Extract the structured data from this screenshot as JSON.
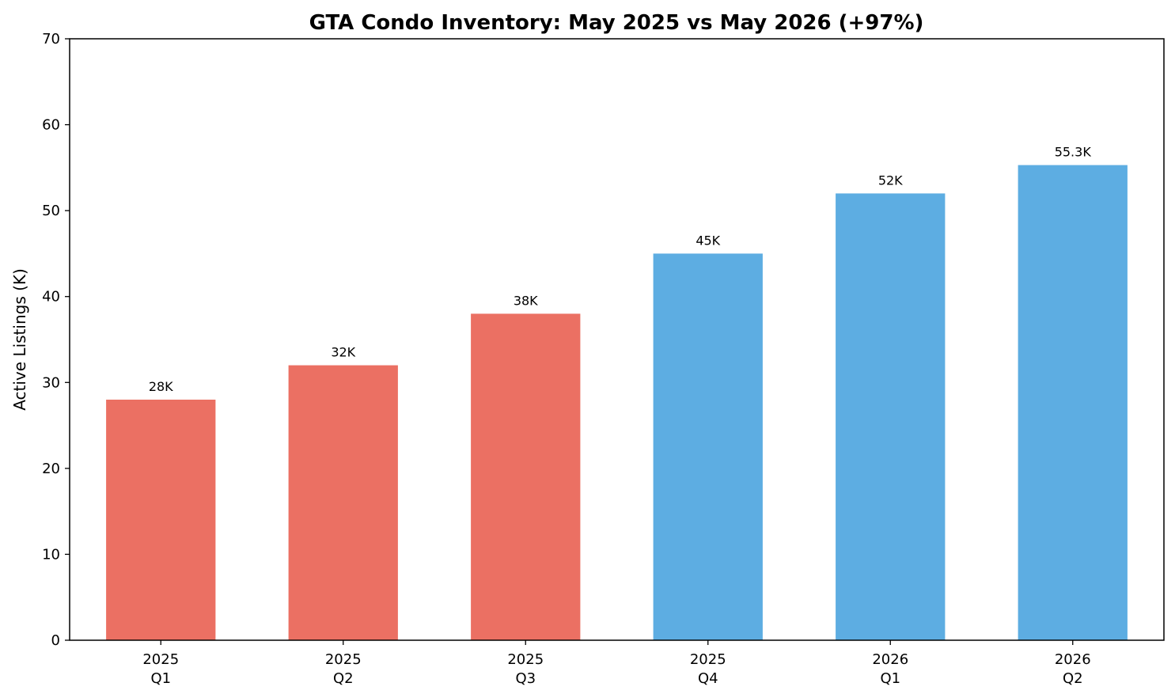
{
  "chart_data": {
    "type": "bar",
    "title": "GTA Condo Inventory: May 2025 vs May 2026 (+97%)",
    "ylabel": "Active Listings (K)",
    "xlabel": "",
    "ylim": [
      0,
      70
    ],
    "yticks": [
      0,
      10,
      20,
      30,
      40,
      50,
      60,
      70
    ],
    "grid": false,
    "categories": [
      [
        "2025",
        "Q1"
      ],
      [
        "2025",
        "Q2"
      ],
      [
        "2025",
        "Q3"
      ],
      [
        "2025",
        "Q4"
      ],
      [
        "2026",
        "Q1"
      ],
      [
        "2026",
        "Q2"
      ]
    ],
    "values": [
      28,
      32,
      38,
      45,
      52,
      55.3
    ],
    "data_labels": [
      "28K",
      "32K",
      "38K",
      "45K",
      "52K",
      "55.3K"
    ],
    "bar_colors": [
      "#eb7063",
      "#eb7063",
      "#eb7063",
      "#5dade2",
      "#5dade2",
      "#5dade2"
    ]
  }
}
